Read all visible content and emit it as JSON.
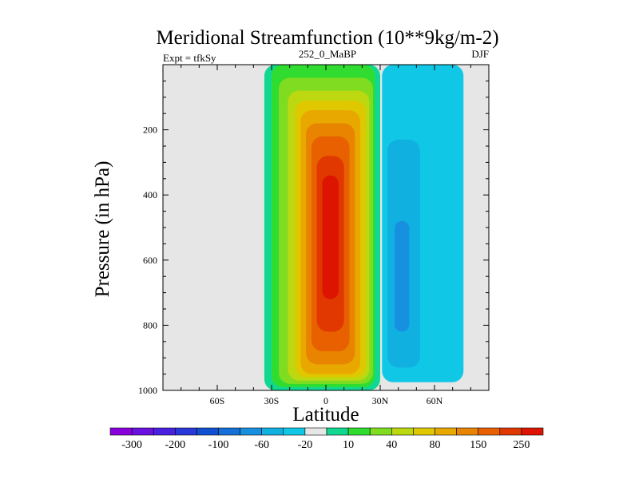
{
  "chart_data": {
    "type": "contour",
    "title": "Meridional Streamfunction (10**9kg/m-2)",
    "left_label": "Expt = tfkSy",
    "center_label": "252_0_MaBP",
    "right_label": "DJF",
    "xlabel": "Latitude",
    "ylabel": "Pressure (in hPa)",
    "xlim": [
      -90,
      90
    ],
    "ylim": [
      1000,
      0
    ],
    "x_ticks": [
      {
        "value": -60,
        "label": "60S"
      },
      {
        "value": -30,
        "label": "30S"
      },
      {
        "value": 0,
        "label": "0"
      },
      {
        "value": 30,
        "label": "30N"
      },
      {
        "value": 60,
        "label": "60N"
      }
    ],
    "y_ticks": [
      {
        "value": 200,
        "label": "200"
      },
      {
        "value": 400,
        "label": "400"
      },
      {
        "value": 600,
        "label": "600"
      },
      {
        "value": 800,
        "label": "800"
      },
      {
        "value": 1000,
        "label": "1000"
      }
    ],
    "background_color": "#e6e6e6",
    "colorbar": {
      "colors": [
        "#8a00dc",
        "#6a10e0",
        "#4a20e0",
        "#2838d8",
        "#1050d0",
        "#1470d8",
        "#1890e0",
        "#10b0e0",
        "#10c8e6",
        "#e6e6e6",
        "#10d890",
        "#30dc30",
        "#80dc20",
        "#bcd810",
        "#e0c800",
        "#e8a800",
        "#e88400",
        "#e86000",
        "#e03800",
        "#dc1400"
      ],
      "labels": [
        "-300",
        "-200",
        "-100",
        "-60",
        "-20",
        "10",
        "40",
        "80",
        "150",
        "250"
      ]
    },
    "cells": [
      {
        "value": 10,
        "color": "#10d890",
        "lat": [
          -34,
          30
        ],
        "p": [
          1000,
          0
        ]
      },
      {
        "value": 40,
        "color": "#30dc30",
        "lat": [
          -30,
          27
        ],
        "p": [
          990,
          0
        ]
      },
      {
        "value": 60,
        "color": "#80dc20",
        "lat": [
          -26,
          26
        ],
        "p": [
          980,
          40
        ]
      },
      {
        "value": 80,
        "color": "#bcd810",
        "lat": [
          -21,
          24
        ],
        "p": [
          970,
          80
        ]
      },
      {
        "value": 100,
        "color": "#e0c800",
        "lat": [
          -17,
          22
        ],
        "p": [
          960,
          110
        ]
      },
      {
        "value": 150,
        "color": "#e8a800",
        "lat": [
          -14,
          19
        ],
        "p": [
          950,
          140
        ]
      },
      {
        "value": 200,
        "color": "#e88400",
        "lat": [
          -11,
          16
        ],
        "p": [
          920,
          180
        ]
      },
      {
        "value": 250,
        "color": "#e86000",
        "lat": [
          -8,
          13
        ],
        "p": [
          880,
          220
        ]
      },
      {
        "value": 300,
        "color": "#e03800",
        "lat": [
          -5,
          10
        ],
        "p": [
          820,
          280
        ]
      },
      {
        "value": 350,
        "color": "#dc1400",
        "lat": [
          -2,
          7
        ],
        "p": [
          720,
          340
        ]
      },
      {
        "value": -10,
        "color": "#10c8e6",
        "lat": [
          31,
          76
        ],
        "p": [
          975,
          0
        ]
      },
      {
        "value": -20,
        "color": "#10b0e0",
        "lat": [
          34,
          52
        ],
        "p": [
          930,
          230
        ]
      },
      {
        "value": -60,
        "color": "#1890e0",
        "lat": [
          38,
          46
        ],
        "p": [
          820,
          480
        ]
      }
    ]
  }
}
